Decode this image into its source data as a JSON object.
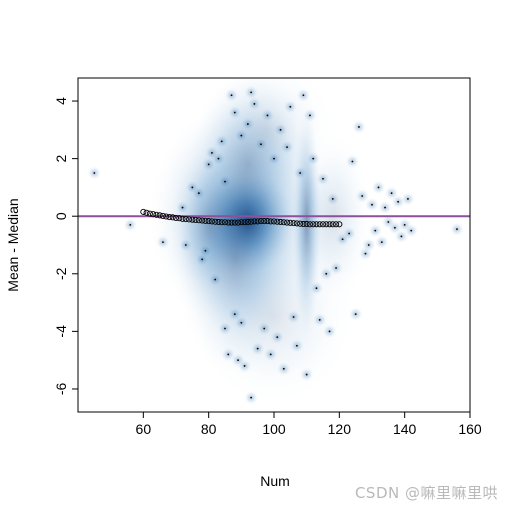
{
  "chart_data": {
    "type": "scatter",
    "title": "",
    "xlabel": "Num",
    "ylabel": "Mean - Median",
    "xlim": [
      40,
      160
    ],
    "ylim": [
      -6.8,
      4.8
    ],
    "xticks": [
      60,
      80,
      100,
      120,
      140,
      160
    ],
    "yticks": [
      -6,
      -4,
      -2,
      0,
      2,
      4
    ],
    "grid": false,
    "legend": "none",
    "reference_line": {
      "y": 0,
      "color": "#8e4f9c"
    },
    "density_color": "#08306b",
    "density_blobs": [
      {
        "x": 92,
        "y": -0.2,
        "sx": 7,
        "sy": 0.9,
        "w": 1.0
      },
      {
        "x": 90,
        "y": 0.0,
        "sx": 14,
        "sy": 2.0,
        "w": 0.55
      },
      {
        "x": 110,
        "y": -0.2,
        "sx": 2.2,
        "sy": 2.0,
        "w": 0.55
      },
      {
        "x": 88,
        "y": -1.5,
        "sx": 9,
        "sy": 2.0,
        "w": 0.35
      },
      {
        "x": 92,
        "y": 1.8,
        "sx": 9,
        "sy": 1.6,
        "w": 0.3
      },
      {
        "x": 100,
        "y": -3.5,
        "sx": 12,
        "sy": 1.5,
        "w": 0.15
      },
      {
        "x": 98,
        "y": 3.0,
        "sx": 10,
        "sy": 1.2,
        "w": 0.15
      },
      {
        "x": 80,
        "y": -0.3,
        "sx": 6,
        "sy": 1.3,
        "w": 0.3
      },
      {
        "x": 118,
        "y": -0.1,
        "sx": 6,
        "sy": 1.5,
        "w": 0.18
      }
    ],
    "outlier_points": [
      [
        45,
        1.5
      ],
      [
        56,
        -0.3
      ],
      [
        66,
        -0.9
      ],
      [
        72,
        0.3
      ],
      [
        73,
        -1.0
      ],
      [
        75,
        1.0
      ],
      [
        77,
        0.8
      ],
      [
        78,
        -1.5
      ],
      [
        79,
        -1.2
      ],
      [
        80,
        1.8
      ],
      [
        81,
        2.2
      ],
      [
        82,
        -2.2
      ],
      [
        83,
        2.0
      ],
      [
        84,
        2.6
      ],
      [
        85,
        -3.9
      ],
      [
        85,
        1.2
      ],
      [
        86,
        -4.8
      ],
      [
        87,
        4.2
      ],
      [
        88,
        3.6
      ],
      [
        88,
        -3.4
      ],
      [
        89,
        -5.0
      ],
      [
        90,
        2.8
      ],
      [
        90,
        -3.7
      ],
      [
        91,
        -5.2
      ],
      [
        92,
        3.2
      ],
      [
        93,
        -6.3
      ],
      [
        93,
        4.3
      ],
      [
        94,
        3.9
      ],
      [
        95,
        -4.6
      ],
      [
        96,
        2.5
      ],
      [
        97,
        -3.9
      ],
      [
        98,
        3.5
      ],
      [
        99,
        -4.8
      ],
      [
        100,
        2.0
      ],
      [
        101,
        -4.2
      ],
      [
        102,
        3.0
      ],
      [
        103,
        -5.3
      ],
      [
        104,
        2.4
      ],
      [
        105,
        3.8
      ],
      [
        106,
        -3.5
      ],
      [
        107,
        -4.5
      ],
      [
        108,
        1.5
      ],
      [
        109,
        4.2
      ],
      [
        110,
        -5.5
      ],
      [
        111,
        3.5
      ],
      [
        112,
        2.0
      ],
      [
        113,
        -2.5
      ],
      [
        114,
        -3.6
      ],
      [
        115,
        1.3
      ],
      [
        116,
        -2.0
      ],
      [
        117,
        -4.0
      ],
      [
        118,
        0.6
      ],
      [
        119,
        -1.8
      ],
      [
        121,
        -0.8
      ],
      [
        123,
        -0.6
      ],
      [
        124,
        1.9
      ],
      [
        125,
        -3.4
      ],
      [
        126,
        3.1
      ],
      [
        127,
        0.7
      ],
      [
        128,
        -1.3
      ],
      [
        129,
        -1.0
      ],
      [
        130,
        0.4
      ],
      [
        131,
        -0.5
      ],
      [
        132,
        1.0
      ],
      [
        133,
        -0.9
      ],
      [
        134,
        0.3
      ],
      [
        135,
        -0.2
      ],
      [
        136,
        0.8
      ],
      [
        137,
        -0.4
      ],
      [
        138,
        0.5
      ],
      [
        139,
        -0.7
      ],
      [
        140,
        -0.3
      ],
      [
        141,
        0.6
      ],
      [
        142,
        -0.5
      ],
      [
        156,
        -0.45
      ]
    ],
    "trend_points": {
      "x": [
        60,
        61,
        62,
        63,
        64,
        65,
        66,
        67,
        68,
        69,
        70,
        71,
        72,
        73,
        74,
        75,
        76,
        77,
        78,
        79,
        80,
        81,
        82,
        83,
        84,
        85,
        86,
        87,
        88,
        89,
        90,
        91,
        92,
        93,
        94,
        95,
        96,
        97,
        98,
        99,
        100,
        101,
        102,
        103,
        104,
        105,
        106,
        107,
        108,
        109,
        110,
        111,
        112,
        113,
        114,
        115,
        116,
        117,
        118,
        119,
        120
      ],
      "y": [
        0.15,
        0.12,
        0.09,
        0.07,
        0.05,
        0.03,
        0.01,
        -0.01,
        -0.03,
        -0.04,
        -0.06,
        -0.07,
        -0.09,
        -0.1,
        -0.11,
        -0.12,
        -0.13,
        -0.14,
        -0.15,
        -0.16,
        -0.17,
        -0.18,
        -0.19,
        -0.2,
        -0.21,
        -0.21,
        -0.22,
        -0.22,
        -0.22,
        -0.22,
        -0.21,
        -0.21,
        -0.2,
        -0.19,
        -0.18,
        -0.18,
        -0.17,
        -0.17,
        -0.17,
        -0.18,
        -0.18,
        -0.19,
        -0.2,
        -0.21,
        -0.22,
        -0.23,
        -0.24,
        -0.25,
        -0.26,
        -0.27,
        -0.27,
        -0.28,
        -0.28,
        -0.28,
        -0.28,
        -0.28,
        -0.28,
        -0.28,
        -0.28,
        -0.28,
        -0.28
      ]
    }
  },
  "watermark": "CSDN @嘛里嘛里哄"
}
